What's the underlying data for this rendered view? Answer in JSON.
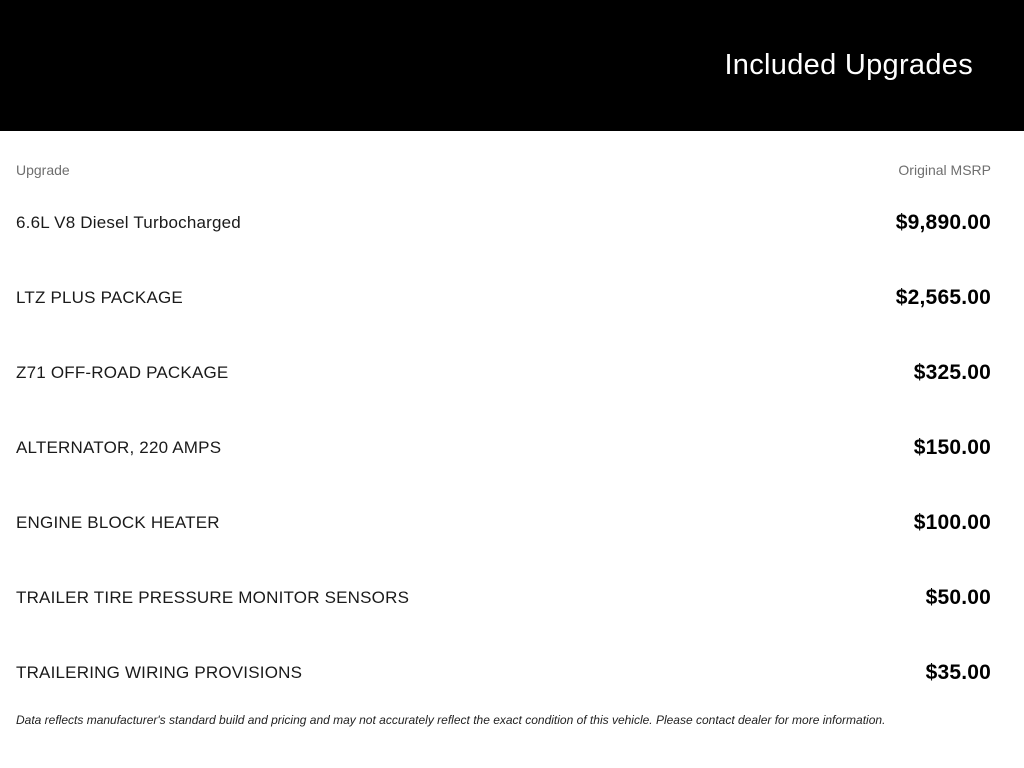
{
  "header": {
    "title": "Included Upgrades"
  },
  "table": {
    "columns": {
      "upgrade": "Upgrade",
      "msrp": "Original MSRP"
    },
    "rows": [
      {
        "name": "6.6L V8 Diesel Turbocharged",
        "msrp": "$9,890.00"
      },
      {
        "name": "LTZ PLUS PACKAGE",
        "msrp": "$2,565.00"
      },
      {
        "name": "Z71 OFF-ROAD PACKAGE",
        "msrp": "$325.00"
      },
      {
        "name": "ALTERNATOR, 220 AMPS",
        "msrp": "$150.00"
      },
      {
        "name": "ENGINE BLOCK HEATER",
        "msrp": "$100.00"
      },
      {
        "name": "TRAILER TIRE PRESSURE MONITOR SENSORS",
        "msrp": "$50.00"
      },
      {
        "name": "TRAILERING WIRING PROVISIONS",
        "msrp": "$35.00"
      }
    ]
  },
  "footer": {
    "disclaimer": "Data reflects manufacturer's standard build and pricing and may not accurately reflect the exact condition of this vehicle. Please contact dealer for more information."
  },
  "colors": {
    "header_bg": "#000000",
    "header_text": "#ffffff",
    "column_header_text": "#6e6e6e",
    "row_text": "#1a1a1a",
    "price_text": "#000000",
    "disclaimer_text": "#222222",
    "page_bg": "#ffffff"
  }
}
